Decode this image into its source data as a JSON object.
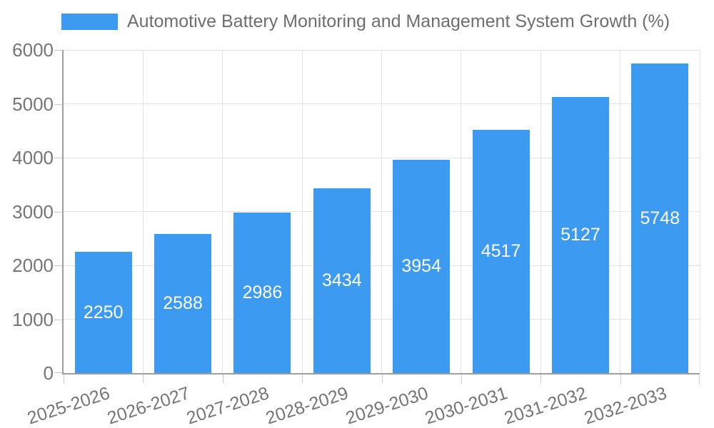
{
  "chart_data": {
    "type": "bar",
    "title": "Automotive Battery Monitoring and Management System Growth (%)",
    "categories": [
      "2025-2026",
      "2026-2027",
      "2027-2028",
      "2028-2029",
      "2029-2030",
      "2030-2031",
      "2031-2032",
      "2032-2033"
    ],
    "values": [
      2250,
      2588,
      2986,
      3434,
      3954,
      4517,
      5127,
      5748
    ],
    "xlabel": "",
    "ylabel": "",
    "ylim": [
      0,
      6000
    ],
    "yticks": [
      0,
      1000,
      2000,
      3000,
      4000,
      5000,
      6000
    ],
    "grid": true,
    "legend_position": "top-left",
    "bar_color": "#3c9bf0",
    "value_label_color": "#ffffff",
    "axis_text_color": "#757575",
    "title_color": "#6e6e6e",
    "grid_color": "#e3e3e3",
    "axis_line_color": "#9e9e9e"
  }
}
